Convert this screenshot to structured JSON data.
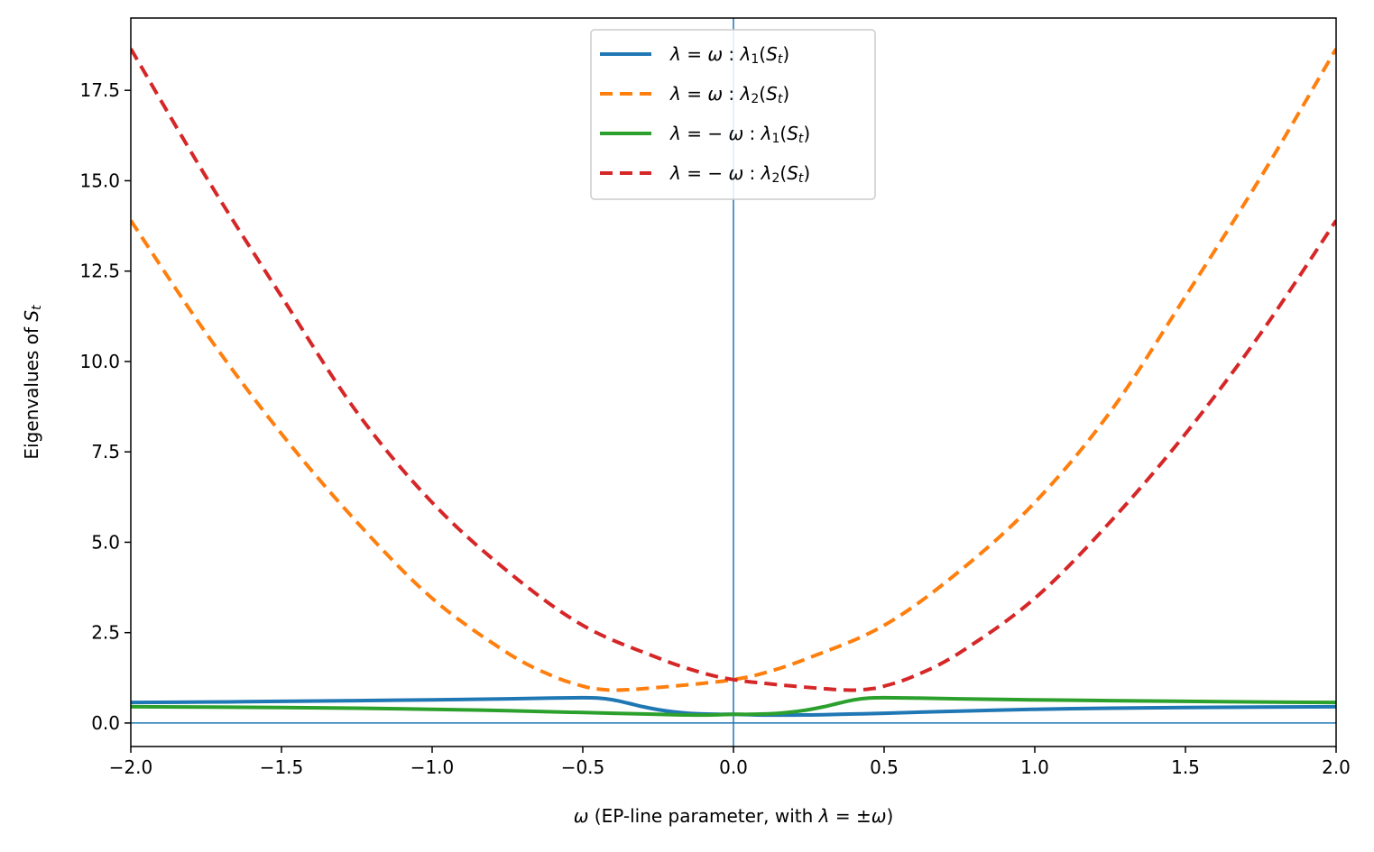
{
  "chart_data": {
    "type": "line",
    "title": "",
    "xlabel_parts": [
      {
        "t": "ω",
        "italic": true
      },
      {
        "t": " (EP-line parameter, with ",
        "italic": false
      },
      {
        "t": "λ",
        "italic": true
      },
      {
        "t": " = ±",
        "italic": false
      },
      {
        "t": "ω",
        "italic": true
      },
      {
        "t": ")",
        "italic": false
      }
    ],
    "ylabel_parts": [
      {
        "t": "Eigenvalues of ",
        "italic": false
      },
      {
        "t": "S",
        "italic": true
      },
      {
        "t": "t",
        "italic": true,
        "sub": true
      }
    ],
    "xlim": [
      -2.0,
      2.0
    ],
    "ylim": [
      -0.65,
      19.5
    ],
    "xticks": [
      -2.0,
      -1.5,
      -1.0,
      -0.5,
      0.0,
      0.5,
      1.0,
      1.5,
      2.0
    ],
    "xtick_labels": [
      "−2.0",
      "−1.5",
      "−1.0",
      "−0.5",
      "0.0",
      "0.5",
      "1.0",
      "1.5",
      "2.0"
    ],
    "yticks": [
      0.0,
      2.5,
      5.0,
      7.5,
      10.0,
      12.5,
      15.0,
      17.5
    ],
    "ytick_labels": [
      "0.0",
      "2.5",
      "5.0",
      "7.5",
      "10.0",
      "12.5",
      "15.0",
      "17.5"
    ],
    "reference_lines": {
      "vertical_x": 0.0,
      "horizontal_y": 0.0,
      "color": "#1f77b4"
    },
    "legend": {
      "location": "upper-center",
      "entries": [
        {
          "series": "lambda_eq_omega_l1",
          "parts": [
            {
              "t": "λ",
              "i": true
            },
            {
              "t": " = ",
              "i": false
            },
            {
              "t": "ω",
              "i": true
            },
            {
              "t": " :  ",
              "i": false
            },
            {
              "t": "λ",
              "i": true
            },
            {
              "t": "1",
              "sub": true
            },
            {
              "t": "(",
              "i": false
            },
            {
              "t": "S",
              "i": true
            },
            {
              "t": "t",
              "i": true,
              "sub": true
            },
            {
              "t": ")",
              "i": false
            }
          ]
        },
        {
          "series": "lambda_eq_omega_l2",
          "parts": [
            {
              "t": "λ",
              "i": true
            },
            {
              "t": " = ",
              "i": false
            },
            {
              "t": "ω",
              "i": true
            },
            {
              "t": " :  ",
              "i": false
            },
            {
              "t": "λ",
              "i": true
            },
            {
              "t": "2",
              "sub": true
            },
            {
              "t": "(",
              "i": false
            },
            {
              "t": "S",
              "i": true
            },
            {
              "t": "t",
              "i": true,
              "sub": true
            },
            {
              "t": ")",
              "i": false
            }
          ]
        },
        {
          "series": "lambda_eq_neg_omega_l1",
          "parts": [
            {
              "t": "λ",
              "i": true
            },
            {
              "t": " = − ",
              "i": false
            },
            {
              "t": "ω",
              "i": true
            },
            {
              "t": " :  ",
              "i": false
            },
            {
              "t": "λ",
              "i": true
            },
            {
              "t": "1",
              "sub": true
            },
            {
              "t": "(",
              "i": false
            },
            {
              "t": "S",
              "i": true
            },
            {
              "t": "t",
              "i": true,
              "sub": true
            },
            {
              "t": ")",
              "i": false
            }
          ]
        },
        {
          "series": "lambda_eq_neg_omega_l2",
          "parts": [
            {
              "t": "λ",
              "i": true
            },
            {
              "t": " = − ",
              "i": false
            },
            {
              "t": "ω",
              "i": true
            },
            {
              "t": " :  ",
              "i": false
            },
            {
              "t": "λ",
              "i": true
            },
            {
              "t": "2",
              "sub": true
            },
            {
              "t": "(",
              "i": false
            },
            {
              "t": "S",
              "i": true
            },
            {
              "t": "t",
              "i": true,
              "sub": true
            },
            {
              "t": ")",
              "i": false
            }
          ]
        }
      ]
    },
    "series": [
      {
        "id": "lambda_eq_omega_l1",
        "name": "λ = ω : λ1(St)",
        "color": "#1f77b4",
        "dash": "solid",
        "x": [
          -2.0,
          -1.75,
          -1.5,
          -1.25,
          -1.0,
          -0.75,
          -0.6,
          -0.5,
          -0.45,
          -0.4,
          -0.35,
          -0.3,
          -0.25,
          -0.2,
          -0.15,
          -0.1,
          -0.05,
          0.0,
          0.1,
          0.2,
          0.3,
          0.4,
          0.5,
          0.75,
          1.0,
          1.25,
          1.5,
          1.75,
          2.0
        ],
        "y": [
          0.57,
          0.58,
          0.6,
          0.62,
          0.64,
          0.67,
          0.69,
          0.7,
          0.69,
          0.64,
          0.55,
          0.45,
          0.37,
          0.31,
          0.27,
          0.25,
          0.24,
          0.24,
          0.22,
          0.22,
          0.23,
          0.25,
          0.27,
          0.33,
          0.38,
          0.41,
          0.43,
          0.44,
          0.45
        ]
      },
      {
        "id": "lambda_eq_omega_l2",
        "name": "λ = ω : λ2(St)",
        "color": "#ff7f0e",
        "dash": "dashed",
        "x": [
          -2.0,
          -1.75,
          -1.5,
          -1.25,
          -1.0,
          -0.75,
          -0.6,
          -0.5,
          -0.45,
          -0.4,
          -0.35,
          -0.3,
          -0.2,
          -0.1,
          0.0,
          0.1,
          0.25,
          0.5,
          0.75,
          1.0,
          1.25,
          1.5,
          1.75,
          2.0
        ],
        "y": [
          13.9,
          10.78,
          8.0,
          5.56,
          3.45,
          1.94,
          1.3,
          1.02,
          0.94,
          0.91,
          0.92,
          0.95,
          1.02,
          1.1,
          1.2,
          1.38,
          1.8,
          2.7,
          4.2,
          6.1,
          8.6,
          11.8,
          15.1,
          18.65
        ]
      },
      {
        "id": "lambda_eq_neg_omega_l1",
        "name": "λ = −ω : λ1(St)",
        "color": "#2ca02c",
        "dash": "solid",
        "x": [
          -2.0,
          -1.75,
          -1.5,
          -1.25,
          -1.0,
          -0.75,
          -0.5,
          -0.4,
          -0.3,
          -0.2,
          -0.1,
          0.0,
          0.05,
          0.1,
          0.15,
          0.2,
          0.25,
          0.3,
          0.35,
          0.4,
          0.45,
          0.5,
          0.6,
          0.75,
          1.0,
          1.25,
          1.5,
          1.75,
          2.0
        ],
        "y": [
          0.45,
          0.44,
          0.43,
          0.41,
          0.38,
          0.34,
          0.29,
          0.27,
          0.25,
          0.23,
          0.22,
          0.24,
          0.24,
          0.25,
          0.27,
          0.31,
          0.37,
          0.45,
          0.55,
          0.64,
          0.69,
          0.7,
          0.69,
          0.67,
          0.64,
          0.62,
          0.6,
          0.58,
          0.57
        ]
      },
      {
        "id": "lambda_eq_neg_omega_l2",
        "name": "λ = −ω : λ2(St)",
        "color": "#d62728",
        "dash": "dashed",
        "x": [
          -2.0,
          -1.75,
          -1.5,
          -1.25,
          -1.0,
          -0.75,
          -0.5,
          -0.25,
          -0.1,
          0.0,
          0.1,
          0.2,
          0.3,
          0.35,
          0.4,
          0.45,
          0.5,
          0.6,
          0.75,
          1.0,
          1.25,
          1.5,
          1.75,
          2.0
        ],
        "y": [
          18.65,
          15.1,
          11.8,
          8.6,
          6.1,
          4.2,
          2.7,
          1.8,
          1.38,
          1.2,
          1.1,
          1.02,
          0.95,
          0.92,
          0.91,
          0.94,
          1.02,
          1.3,
          1.94,
          3.45,
          5.56,
          8.0,
          10.78,
          13.9
        ]
      }
    ]
  }
}
